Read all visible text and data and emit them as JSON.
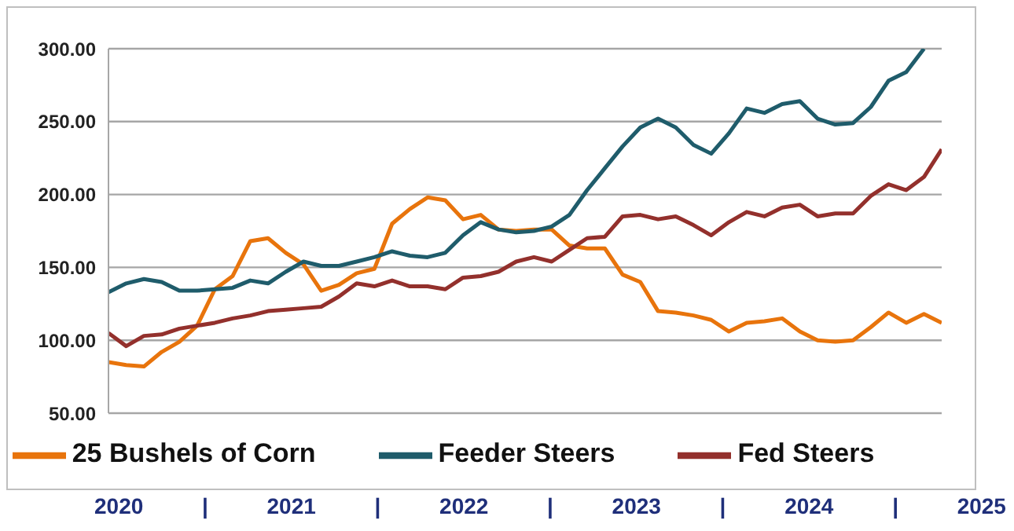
{
  "chart_data": {
    "type": "line",
    "categories": [
      null,
      null,
      null,
      null,
      null,
      null,
      null,
      null,
      null,
      null,
      null,
      null,
      null,
      null,
      null,
      null,
      null,
      null,
      null,
      null,
      null,
      null,
      null,
      null,
      null,
      null,
      null,
      null,
      null,
      null,
      null,
      null,
      null,
      null,
      null,
      null,
      null,
      null,
      null,
      null,
      null,
      null,
      null,
      null,
      null,
      null,
      null,
      null
    ],
    "series": [
      {
        "name": "25 Bushels of Corn",
        "color": "#e8740c",
        "values": [
          85,
          83,
          82,
          92,
          99,
          110,
          135,
          144,
          168,
          170,
          160,
          152,
          134,
          138,
          146,
          149,
          180,
          190,
          198,
          196,
          183,
          186,
          176,
          175,
          176,
          176,
          165,
          163,
          163,
          145,
          140,
          120,
          119,
          117,
          114,
          106,
          112,
          113,
          115,
          106,
          100,
          99,
          100,
          109,
          119,
          112,
          118,
          112
        ]
      },
      {
        "name": "Feeder Steers",
        "color": "#1f5c6b",
        "values": [
          133,
          139,
          142,
          140,
          134,
          134,
          135,
          136,
          141,
          139,
          147,
          154,
          151,
          151,
          154,
          157,
          161,
          158,
          157,
          160,
          172,
          181,
          176,
          174,
          175,
          178,
          186,
          203,
          218,
          233,
          246,
          252,
          246,
          234,
          228,
          242,
          259,
          256,
          262,
          264,
          252,
          248,
          249,
          260,
          278,
          284,
          300,
          null
        ]
      },
      {
        "name": "Fed Steers",
        "color": "#93302c",
        "values": [
          105,
          96,
          103,
          104,
          108,
          110,
          112,
          115,
          117,
          120,
          121,
          122,
          123,
          130,
          139,
          137,
          141,
          137,
          137,
          135,
          143,
          144,
          147,
          154,
          157,
          154,
          162,
          170,
          171,
          185,
          186,
          183,
          185,
          179,
          172,
          181,
          188,
          185,
          191,
          193,
          185,
          187,
          187,
          199,
          207,
          203,
          212,
          231
        ]
      }
    ],
    "ylim": [
      50,
      300
    ],
    "yticks": [
      {
        "value": 50,
        "label": "50.00"
      },
      {
        "value": 100,
        "label": "100.00"
      },
      {
        "value": 150,
        "label": "150.00"
      },
      {
        "value": 200,
        "label": "200.00"
      },
      {
        "value": 250,
        "label": "250.00"
      },
      {
        "value": 300,
        "label": "300.00"
      }
    ],
    "grid": "y",
    "legend": "bottom",
    "tick_labels": "y",
    "marker": "none",
    "line_style": "solid",
    "annotations": [
      "2020",
      "|",
      "2021",
      "|",
      "2022",
      "|",
      "2023",
      "|",
      "2024",
      "|",
      "2025"
    ]
  }
}
